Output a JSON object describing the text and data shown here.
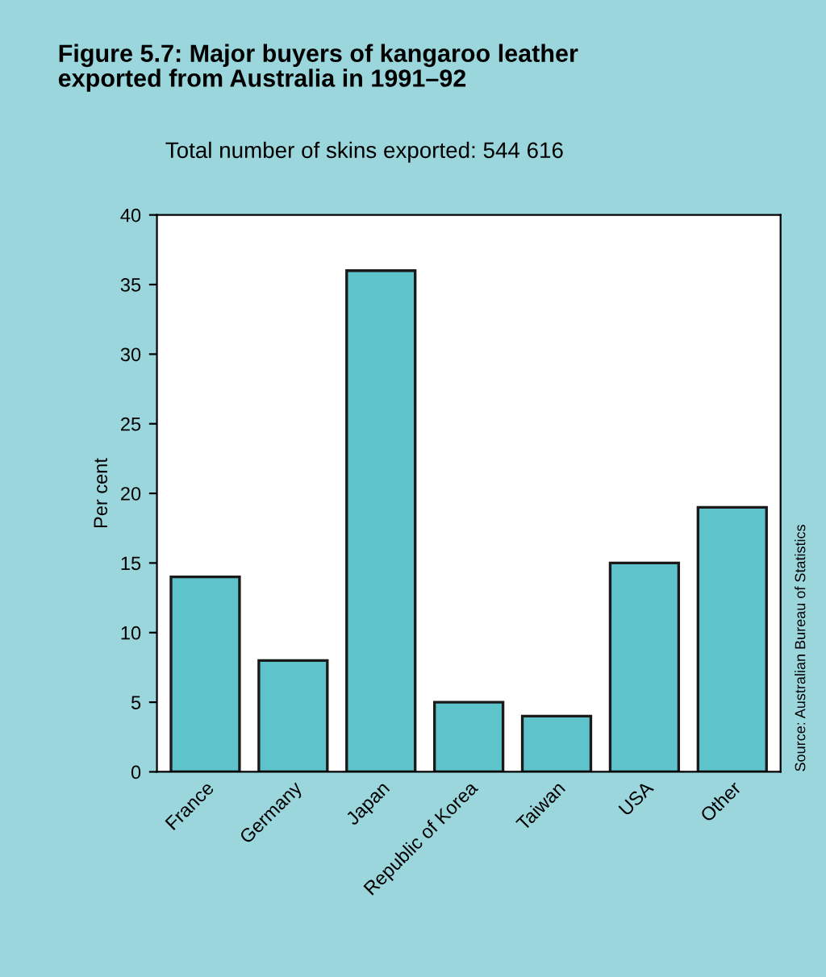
{
  "chart_data": {
    "type": "bar",
    "title": "Figure 5.7: Major buyers of kangaroo leather\nexported from Australia in 1991–92",
    "subtitle": "Total number of skins exported: 544 616",
    "ylabel": "Per cent",
    "categories": [
      "France",
      "Germany",
      "Japan",
      "Republic of Korea",
      "Taiwan",
      "USA",
      "Other"
    ],
    "values": [
      14,
      8,
      36,
      5,
      4,
      15,
      19
    ],
    "color": "#5ec3cb",
    "ylim": [
      0,
      40
    ],
    "yticks": [
      0,
      5,
      10,
      15,
      20,
      25,
      30,
      35,
      40
    ],
    "grid": false,
    "legend": false,
    "annotations": [
      "Source: Australian Bureau of Statistics"
    ]
  }
}
